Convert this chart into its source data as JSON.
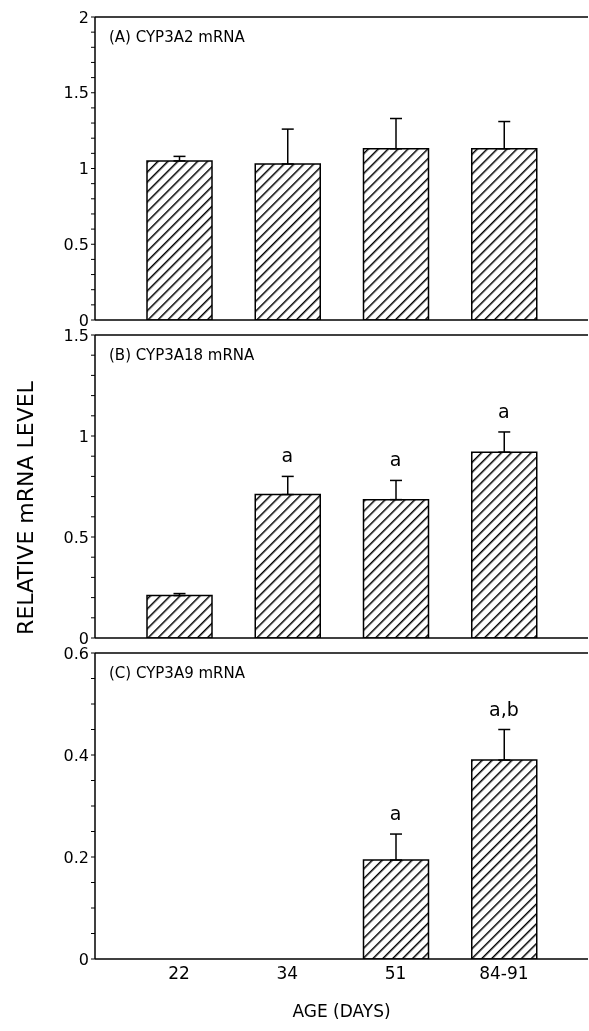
{
  "chart_data": [
    {
      "type": "bar",
      "title": "(A) CYP3A2 mRNA",
      "categories": [
        "22",
        "34",
        "51",
        "84-91"
      ],
      "values": [
        1.05,
        1.03,
        1.13,
        1.13
      ],
      "errors": [
        [
          1.05,
          1.08
        ],
        [
          1.03,
          1.26
        ],
        [
          1.13,
          1.33
        ],
        [
          1.13,
          1.31
        ]
      ],
      "color": "#000000",
      "ylim": [
        0,
        2
      ],
      "yticks": [
        0,
        {
          "value": 0.1,
          "label": null
        },
        {
          "value": 0.2,
          "label": null
        },
        {
          "value": 0.3,
          "label": null
        },
        {
          "value": 0.4,
          "label": null
        },
        {
          "value": 0.5,
          "label": "0.5"
        },
        {
          "value": 0.6,
          "label": null
        },
        {
          "value": 0.7,
          "label": null
        },
        {
          "value": 0.8,
          "label": null
        },
        {
          "value": 0.9,
          "label": null
        },
        1,
        {
          "value": 1.1,
          "label": null
        },
        {
          "value": 1.2,
          "label": null
        },
        {
          "value": 1.3,
          "label": null
        },
        {
          "value": 1.4,
          "label": null
        },
        1.5,
        {
          "value": 1.6,
          "label": null
        },
        {
          "value": 1.7,
          "label": null
        },
        {
          "value": 1.8,
          "label": null
        },
        {
          "value": 1.9,
          "label": null
        },
        2
      ],
      "tick_labels": "y",
      "grid": false,
      "legend": false
    },
    {
      "type": "bar",
      "title": "(B) CYP3A18 mRNA",
      "ylabel": "RELATIVE mRNA LEVEL",
      "categories": [
        "22",
        "34",
        "51",
        "84-91"
      ],
      "values": [
        0.21,
        0.71,
        0.685,
        0.92
      ],
      "errors": [
        [
          0.21,
          0.22
        ],
        [
          0.71,
          0.8
        ],
        [
          0.685,
          0.78
        ],
        [
          0.92,
          1.02
        ]
      ],
      "color": "#000000",
      "ylim": [
        0,
        1.5
      ],
      "yticks": [
        0,
        {
          "value": 0.1,
          "label": null
        },
        {
          "value": 0.2,
          "label": null
        },
        {
          "value": 0.3,
          "label": null
        },
        {
          "value": 0.4,
          "label": null
        },
        {
          "value": 0.5,
          "label": "0.5"
        },
        {
          "value": 0.6,
          "label": null
        },
        {
          "value": 0.7,
          "label": null
        },
        {
          "value": 0.8,
          "label": null
        },
        {
          "value": 0.9,
          "label": null
        },
        1,
        {
          "value": 1.1,
          "label": null
        },
        {
          "value": 1.2,
          "label": null
        },
        {
          "value": 1.3,
          "label": null
        },
        {
          "value": 1.4,
          "label": null
        },
        1.5
      ],
      "tick_labels": "y",
      "grid": false,
      "legend": false,
      "annotations": [
        {
          "text": "a",
          "x": "34",
          "y": 0.8
        },
        {
          "text": "a",
          "x": "51",
          "y": 0.78
        },
        {
          "text": "a",
          "x": "84-91",
          "y": 1.02
        }
      ]
    },
    {
      "type": "bar",
      "title": "(C) CYP3A9 mRNA",
      "xlabel": "AGE (DAYS)",
      "categories": [
        "22",
        "34",
        "51",
        "84-91"
      ],
      "values": [
        null,
        null,
        0.194,
        0.39
      ],
      "errors": [
        null,
        null,
        [
          0.194,
          0.245
        ],
        [
          0.39,
          0.45
        ]
      ],
      "color": "#000000",
      "ylim": [
        0,
        0.6
      ],
      "yticks": [
        0,
        {
          "value": 0.05,
          "label": null
        },
        {
          "value": 0.1,
          "label": null
        },
        {
          "value": 0.15,
          "label": null
        },
        {
          "value": 0.2,
          "label": "0.2"
        },
        {
          "value": 0.25,
          "label": null
        },
        {
          "value": 0.3,
          "label": null
        },
        {
          "value": 0.35,
          "label": null
        },
        {
          "value": 0.4,
          "label": "0.4"
        },
        {
          "value": 0.45,
          "label": null
        },
        {
          "value": 0.5,
          "label": null
        },
        {
          "value": 0.55,
          "label": null
        },
        {
          "value": 0.6,
          "label": "0.6"
        }
      ],
      "grid": false,
      "legend": false,
      "annotations": [
        {
          "text": "a",
          "x": "51",
          "y": 0.245
        },
        {
          "text": "a,b",
          "x": "84-91",
          "y": 0.45
        }
      ]
    }
  ]
}
